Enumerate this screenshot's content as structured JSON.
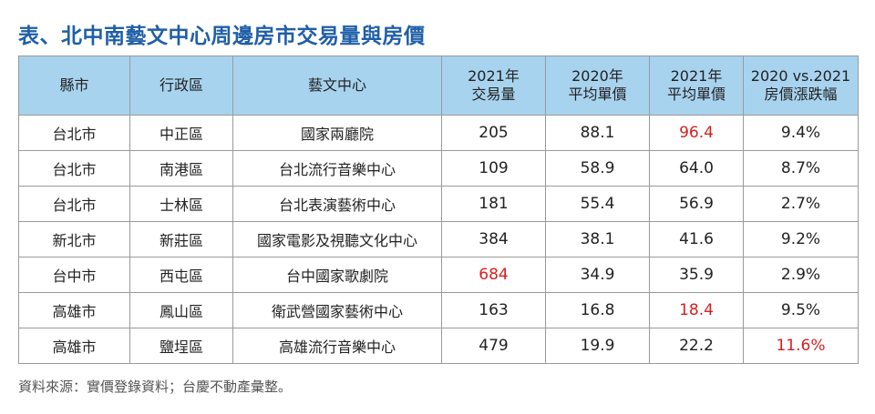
{
  "title": "表、北中南藝文中心周邊房市交易量與房價",
  "table": {
    "headers": [
      {
        "lines": [
          "縣市"
        ]
      },
      {
        "lines": [
          "行政區"
        ]
      },
      {
        "lines": [
          "藝文中心"
        ]
      },
      {
        "lines": [
          "2021年",
          "交易量"
        ]
      },
      {
        "lines": [
          "2020年",
          "平均單價"
        ]
      },
      {
        "lines": [
          "2021年",
          "平均單價"
        ]
      },
      {
        "lines": [
          "2020 vs.2021",
          "房價漲跌幅"
        ]
      }
    ],
    "rows": [
      [
        "台北市",
        "中正區",
        "國家兩廳院",
        "205",
        "88.1",
        "96.4",
        "9.4%"
      ],
      [
        "台北市",
        "南港區",
        "台北流行音樂中心",
        "109",
        "58.9",
        "64.0",
        "8.7%"
      ],
      [
        "台北市",
        "士林區",
        "台北表演藝術中心",
        "181",
        "55.4",
        "56.9",
        "2.7%"
      ],
      [
        "新北市",
        "新莊區",
        "國家電影及視聽文化中心",
        "384",
        "38.1",
        "41.6",
        "9.2%"
      ],
      [
        "台中市",
        "西屯區",
        "台中國家歌劇院",
        "684",
        "34.9",
        "35.9",
        "2.9%"
      ],
      [
        "高雄市",
        "鳳山區",
        "衛武營國家藝術中心",
        "163",
        "16.8",
        "18.4",
        "9.5%"
      ],
      [
        "高雄市",
        "鹽埕區",
        "高雄流行音樂中心",
        "479",
        "19.9",
        "22.2",
        "11.6%"
      ]
    ],
    "highlighted_cells": [
      {
        "row": 0,
        "col": 5
      },
      {
        "row": 4,
        "col": 3
      },
      {
        "row": 5,
        "col": 5
      },
      {
        "row": 6,
        "col": 6
      }
    ]
  },
  "source_note": "資料來源：實價登錄資料；台慶不動產彙整。",
  "colors": {
    "title": "#1f5fa8",
    "header_bg": "#a8d3ef",
    "highlight": "#d62020",
    "border": "#9a9a9a"
  }
}
